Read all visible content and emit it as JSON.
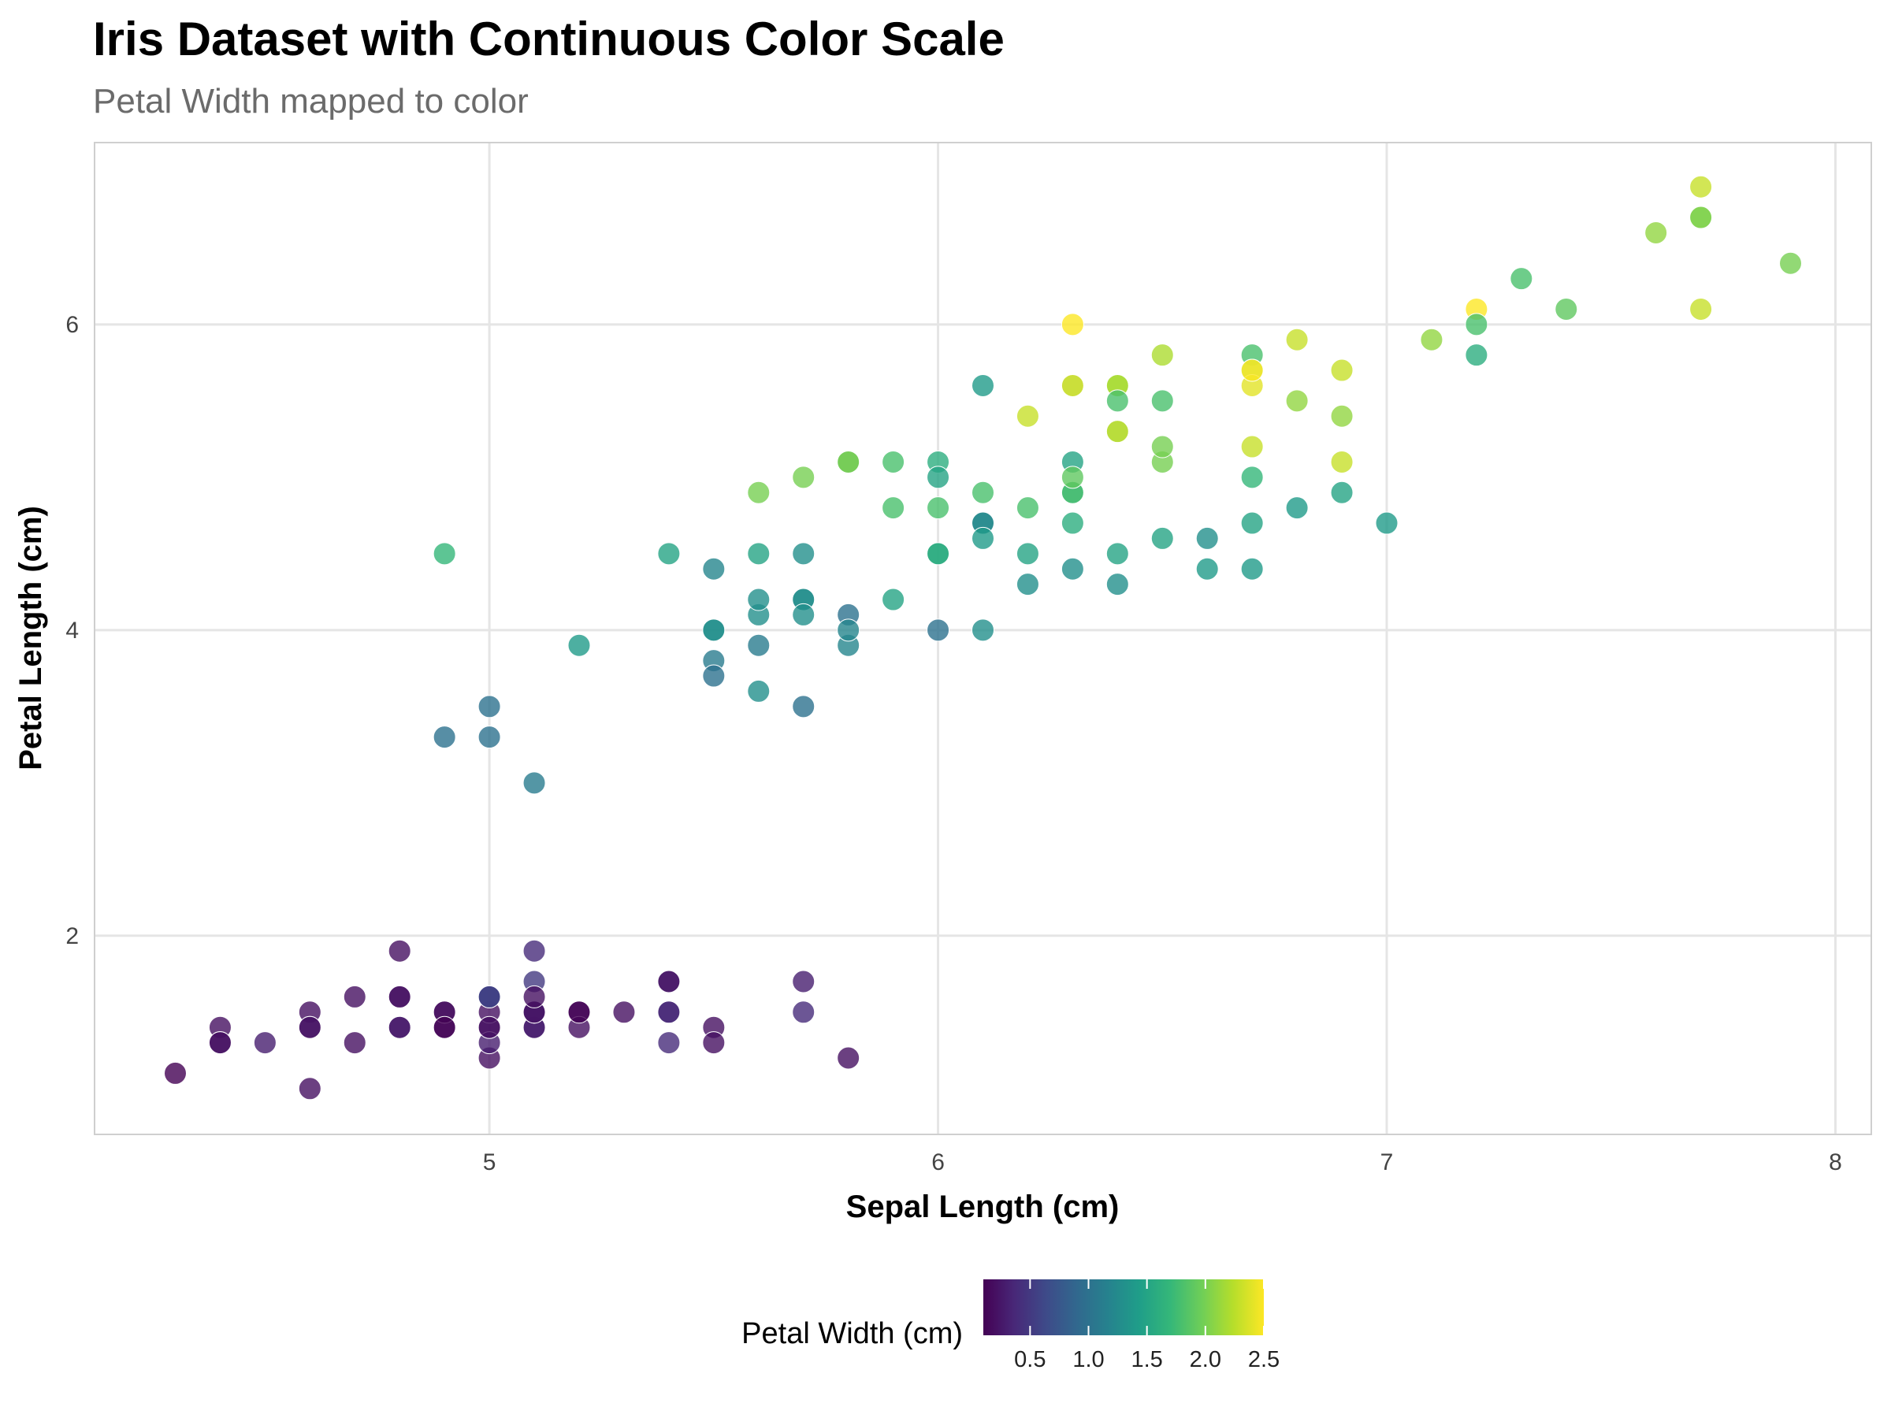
{
  "chart_data": {
    "type": "scatter",
    "title": "Iris Dataset with Continuous Color Scale",
    "subtitle": "Petal Width mapped to color",
    "xlabel": "Sepal Length (cm)",
    "ylabel": "Petal Length (cm)",
    "xlim": [
      4.12,
      8.08
    ],
    "ylim": [
      0.7,
      7.19
    ],
    "x_ticks": [
      5,
      6,
      7,
      8
    ],
    "x_tick_labels": [
      "5",
      "6",
      "7",
      "8"
    ],
    "y_ticks": [
      2,
      4,
      6
    ],
    "y_tick_labels": [
      "2",
      "4",
      "6"
    ],
    "grid": true,
    "color_scale": {
      "name": "Petal Width (cm)",
      "palette": "viridis",
      "colors": [
        "#440154",
        "#482878",
        "#3e4a89",
        "#31688e",
        "#26828e",
        "#1f9e89",
        "#35b779",
        "#6ece58",
        "#b5de2b",
        "#fde725"
      ],
      "range": [
        0.1,
        2.5
      ],
      "ticks": [
        0.5,
        1.0,
        1.5,
        2.0,
        2.5
      ],
      "tick_labels": [
        "0.5",
        "1.0",
        "1.5",
        "2.0",
        "2.5"
      ],
      "position": "bottom"
    },
    "columns": [
      "sepal_length",
      "petal_length",
      "petal_width"
    ],
    "points": [
      [
        5.1,
        1.4,
        0.2
      ],
      [
        4.9,
        1.4,
        0.2
      ],
      [
        4.7,
        1.3,
        0.2
      ],
      [
        4.6,
        1.5,
        0.2
      ],
      [
        5.0,
        1.4,
        0.2
      ],
      [
        5.4,
        1.7,
        0.4
      ],
      [
        4.6,
        1.4,
        0.3
      ],
      [
        5.0,
        1.5,
        0.2
      ],
      [
        4.4,
        1.4,
        0.2
      ],
      [
        4.9,
        1.5,
        0.1
      ],
      [
        5.4,
        1.5,
        0.2
      ],
      [
        4.8,
        1.6,
        0.2
      ],
      [
        4.8,
        1.4,
        0.1
      ],
      [
        4.3,
        1.1,
        0.1
      ],
      [
        5.8,
        1.2,
        0.2
      ],
      [
        5.7,
        1.5,
        0.4
      ],
      [
        5.4,
        1.3,
        0.4
      ],
      [
        5.1,
        1.4,
        0.3
      ],
      [
        5.7,
        1.7,
        0.3
      ],
      [
        5.1,
        1.5,
        0.3
      ],
      [
        5.4,
        1.7,
        0.2
      ],
      [
        5.1,
        1.5,
        0.4
      ],
      [
        4.6,
        1.0,
        0.2
      ],
      [
        5.1,
        1.7,
        0.5
      ],
      [
        4.8,
        1.9,
        0.2
      ],
      [
        5.0,
        1.6,
        0.2
      ],
      [
        5.0,
        1.6,
        0.4
      ],
      [
        5.2,
        1.5,
        0.2
      ],
      [
        5.2,
        1.4,
        0.2
      ],
      [
        4.7,
        1.6,
        0.2
      ],
      [
        4.8,
        1.6,
        0.2
      ],
      [
        5.4,
        1.5,
        0.4
      ],
      [
        5.2,
        1.5,
        0.1
      ],
      [
        5.5,
        1.4,
        0.2
      ],
      [
        4.9,
        1.5,
        0.2
      ],
      [
        5.0,
        1.2,
        0.2
      ],
      [
        5.5,
        1.3,
        0.2
      ],
      [
        4.9,
        1.4,
        0.1
      ],
      [
        4.4,
        1.3,
        0.2
      ],
      [
        5.1,
        1.5,
        0.2
      ],
      [
        5.0,
        1.3,
        0.3
      ],
      [
        4.5,
        1.3,
        0.3
      ],
      [
        4.4,
        1.3,
        0.2
      ],
      [
        5.0,
        1.6,
        0.6
      ],
      [
        5.1,
        1.9,
        0.4
      ],
      [
        4.8,
        1.4,
        0.3
      ],
      [
        5.1,
        1.6,
        0.2
      ],
      [
        4.6,
        1.4,
        0.2
      ],
      [
        5.3,
        1.5,
        0.2
      ],
      [
        5.0,
        1.4,
        0.2
      ],
      [
        7.0,
        4.7,
        1.4
      ],
      [
        6.4,
        4.5,
        1.5
      ],
      [
        6.9,
        4.9,
        1.5
      ],
      [
        5.5,
        4.0,
        1.3
      ],
      [
        6.5,
        4.6,
        1.5
      ],
      [
        5.7,
        4.5,
        1.3
      ],
      [
        6.3,
        4.7,
        1.6
      ],
      [
        4.9,
        3.3,
        1.0
      ],
      [
        6.6,
        4.6,
        1.3
      ],
      [
        5.2,
        3.9,
        1.4
      ],
      [
        5.0,
        3.5,
        1.0
      ],
      [
        5.9,
        4.2,
        1.5
      ],
      [
        6.0,
        4.0,
        1.0
      ],
      [
        6.1,
        4.7,
        1.4
      ],
      [
        5.6,
        3.6,
        1.3
      ],
      [
        6.7,
        4.4,
        1.4
      ],
      [
        5.6,
        4.5,
        1.5
      ],
      [
        5.8,
        4.1,
        1.0
      ],
      [
        6.2,
        4.5,
        1.5
      ],
      [
        5.6,
        3.9,
        1.1
      ],
      [
        5.9,
        4.8,
        1.8
      ],
      [
        6.1,
        4.0,
        1.3
      ],
      [
        6.3,
        4.9,
        1.5
      ],
      [
        6.1,
        4.7,
        1.2
      ],
      [
        6.4,
        4.3,
        1.3
      ],
      [
        6.6,
        4.4,
        1.4
      ],
      [
        6.8,
        4.8,
        1.4
      ],
      [
        6.7,
        5.0,
        1.7
      ],
      [
        6.0,
        4.5,
        1.5
      ],
      [
        5.7,
        3.5,
        1.0
      ],
      [
        5.5,
        3.8,
        1.1
      ],
      [
        5.5,
        3.7,
        1.0
      ],
      [
        5.8,
        3.9,
        1.2
      ],
      [
        6.0,
        5.1,
        1.6
      ],
      [
        5.4,
        4.5,
        1.5
      ],
      [
        6.0,
        4.5,
        1.6
      ],
      [
        6.7,
        4.7,
        1.5
      ],
      [
        6.3,
        4.4,
        1.3
      ],
      [
        5.6,
        4.1,
        1.3
      ],
      [
        5.5,
        4.0,
        1.3
      ],
      [
        5.5,
        4.4,
        1.2
      ],
      [
        6.1,
        4.6,
        1.4
      ],
      [
        5.8,
        4.0,
        1.2
      ],
      [
        5.0,
        3.3,
        1.0
      ],
      [
        5.6,
        4.2,
        1.3
      ],
      [
        5.7,
        4.2,
        1.2
      ],
      [
        5.7,
        4.2,
        1.3
      ],
      [
        6.2,
        4.3,
        1.3
      ],
      [
        5.1,
        3.0,
        1.1
      ],
      [
        5.7,
        4.1,
        1.3
      ],
      [
        6.3,
        6.0,
        2.5
      ],
      [
        5.8,
        5.1,
        1.9
      ],
      [
        7.1,
        5.9,
        2.1
      ],
      [
        6.3,
        5.6,
        1.8
      ],
      [
        6.5,
        5.8,
        2.2
      ],
      [
        7.6,
        6.6,
        2.1
      ],
      [
        4.9,
        4.5,
        1.7
      ],
      [
        7.3,
        6.3,
        1.8
      ],
      [
        6.7,
        5.8,
        1.8
      ],
      [
        7.2,
        6.1,
        2.5
      ],
      [
        6.5,
        5.1,
        2.0
      ],
      [
        6.4,
        5.3,
        1.9
      ],
      [
        6.8,
        5.5,
        2.1
      ],
      [
        5.7,
        5.0,
        2.0
      ],
      [
        5.8,
        5.1,
        2.4
      ],
      [
        6.4,
        5.3,
        2.3
      ],
      [
        6.5,
        5.5,
        1.8
      ],
      [
        7.7,
        6.7,
        2.2
      ],
      [
        7.7,
        6.9,
        2.3
      ],
      [
        6.0,
        5.0,
        1.5
      ],
      [
        6.9,
        5.7,
        2.3
      ],
      [
        5.6,
        4.9,
        2.0
      ],
      [
        7.7,
        6.7,
        2.0
      ],
      [
        6.3,
        4.9,
        1.8
      ],
      [
        6.7,
        5.7,
        2.1
      ],
      [
        7.2,
        6.0,
        1.8
      ],
      [
        6.2,
        4.8,
        1.8
      ],
      [
        6.1,
        4.9,
        1.8
      ],
      [
        6.4,
        5.6,
        2.1
      ],
      [
        7.2,
        5.8,
        1.6
      ],
      [
        7.4,
        6.1,
        1.9
      ],
      [
        7.9,
        6.4,
        2.0
      ],
      [
        6.4,
        5.6,
        2.2
      ],
      [
        6.3,
        5.1,
        1.5
      ],
      [
        6.1,
        5.6,
        1.4
      ],
      [
        7.7,
        6.1,
        2.3
      ],
      [
        6.3,
        5.6,
        2.4
      ],
      [
        6.4,
        5.5,
        1.8
      ],
      [
        6.0,
        4.8,
        1.8
      ],
      [
        6.9,
        5.4,
        2.1
      ],
      [
        6.7,
        5.6,
        2.4
      ],
      [
        6.9,
        5.1,
        2.3
      ],
      [
        5.8,
        5.1,
        1.9
      ],
      [
        6.8,
        5.9,
        2.3
      ],
      [
        6.7,
        5.7,
        2.5
      ],
      [
        6.7,
        5.2,
        2.3
      ],
      [
        6.3,
        5.0,
        1.9
      ],
      [
        6.5,
        5.2,
        2.0
      ],
      [
        6.2,
        5.4,
        2.3
      ],
      [
        5.9,
        5.1,
        1.8
      ]
    ]
  }
}
